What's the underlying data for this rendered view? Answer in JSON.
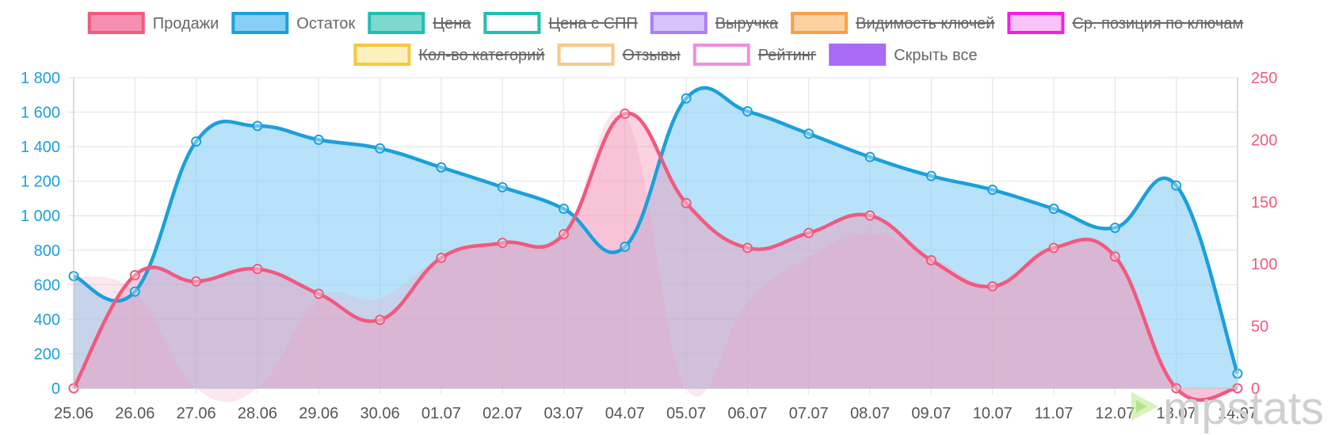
{
  "chart_data": {
    "type": "line",
    "categories": [
      "25.06",
      "26.06",
      "27.06",
      "28.06",
      "29.06",
      "30.06",
      "01.07",
      "02.07",
      "03.07",
      "04.07",
      "05.07",
      "06.07",
      "07.07",
      "08.07",
      "09.07",
      "10.07",
      "11.07",
      "12.07",
      "13.07",
      "14.07"
    ],
    "y_left": {
      "ticks": [
        "0",
        "200",
        "400",
        "600",
        "800",
        "1 000",
        "1 200",
        "1 400",
        "1 600",
        "1 800"
      ],
      "range": [
        0,
        1800
      ]
    },
    "y_right": {
      "ticks": [
        "0",
        "50",
        "100",
        "150",
        "200",
        "250"
      ],
      "range": [
        0,
        250
      ]
    },
    "series": [
      {
        "name": "Продажи",
        "axis": "right",
        "color": "#f2597f",
        "fill": "rgba(244,143,177,0.40)",
        "values": [
          0,
          91,
          86,
          96,
          76,
          55,
          105,
          117,
          124,
          221,
          149,
          113,
          125,
          139,
          103,
          82,
          113,
          106,
          0,
          0
        ]
      },
      {
        "name": "Остаток",
        "axis": "left",
        "color": "#1aa0dc",
        "fill": "rgba(135,206,245,0.60)",
        "values": [
          650,
          560,
          1430,
          1520,
          1440,
          1390,
          1280,
          1165,
          1040,
          820,
          1680,
          1605,
          1475,
          1340,
          1230,
          1150,
          1040,
          930,
          1175,
          85
        ]
      }
    ],
    "hidden_series_fills": [
      {
        "axis": "left",
        "values": [
          650,
          560,
          0,
          0,
          520,
          520,
          760,
          840,
          900,
          1580,
          0,
          500,
          760,
          900,
          760,
          600,
          800,
          760,
          0,
          0
        ]
      }
    ],
    "legend": [
      {
        "label": "Продажи",
        "color": "#f48fb1",
        "border": "#f2597f",
        "hidden": false
      },
      {
        "label": "Остаток",
        "color": "#87cef5",
        "border": "#1aa0dc",
        "hidden": false
      },
      {
        "label": "Цена",
        "color": "#7fd8d0",
        "border": "#1fbfb3",
        "hidden": true
      },
      {
        "label": "Цена с СПП",
        "color": "#ffffff",
        "border": "#1fbfb3",
        "hidden": true
      },
      {
        "label": "Выручка",
        "color": "#d7c4fb",
        "border": "#a97ef7",
        "hidden": true
      },
      {
        "label": "Видимость ключей",
        "color": "#fdd0a0",
        "border": "#f7a04a",
        "hidden": true
      },
      {
        "label": "Ср. позиция по ключам",
        "color": "#f9c2f7",
        "border": "#f21ee6",
        "hidden": true
      },
      {
        "label": "Кол-во категорий",
        "color": "#fdf0c0",
        "border": "#f7c83f",
        "hidden": true
      },
      {
        "label": "Отзывы",
        "color": "#ffffff",
        "border": "#fbc78a",
        "hidden": true
      },
      {
        "label": "Рейтинг",
        "color": "#ffffff",
        "border": "#ee8fe0",
        "hidden": true
      },
      {
        "label": "Скрыть все",
        "color": "#a86cf7",
        "border": "#a86cf7",
        "hidden": false
      }
    ],
    "grid": true
  },
  "watermark": {
    "text": "mpstats"
  }
}
